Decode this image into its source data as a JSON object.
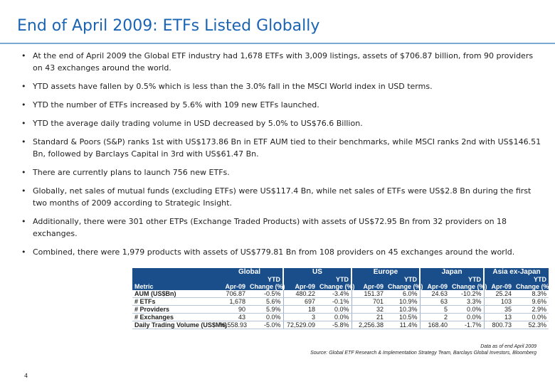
{
  "title": "End of April 2009: ETFs Listed Globally",
  "bullets": [
    "At the end of April 2009 the Global ETF industry had 1,678 ETFs with 3,009 listings, assets of $706.87 billion, from 90 providers on 43 exchanges around the world.",
    "YTD assets have fallen by 0.5% which is less than the 3.0% fall in the MSCI World index in USD terms.",
    "YTD the number of ETFs increased by 5.6% with 109 new ETFs launched.",
    "YTD the average daily trading volume in USD decreased by 5.0% to US$76.6 Billion.",
    "Standard & Poors (S&P) ranks 1st with US$173.86 Bn in ETF AUM tied to their benchmarks, while MSCI ranks 2nd with US$146.51 Bn, followed by Barclays Capital in 3rd with US$61.47 Bn.",
    "There are currently plans to launch 756 new ETFs.",
    "Globally, net sales of mutual funds (excluding ETFs) were US$117.4 Bn, while net sales of ETFs were US$2.8 Bn during the first two months of 2009 according to Strategic Insight.",
    "Additionally, there were 301 other ETPs (Exchange Traded Products) with assets of US$72.95 Bn from 32 providers on 18 exchanges.",
    "Combined, there were 1,979 products with assets of US$779.81 Bn from 108 providers on 45 exchanges around the world."
  ],
  "table": {
    "groups": [
      "Global",
      "US",
      "Europe",
      "Japan",
      "Asia ex-Japan"
    ],
    "ytd_label": "YTD",
    "metric_label": "Metric",
    "col_labels": [
      "Apr-09",
      "Change (%)"
    ],
    "rows": [
      {
        "metric": "AUM (US$Bn)",
        "values": [
          "706.87",
          "-0.5%",
          "480.22",
          "-3.4%",
          "151.37",
          "6.0%",
          "24.63",
          "-10.2%",
          "25.24",
          "8.3%"
        ]
      },
      {
        "metric": "# ETFs",
        "values": [
          "1,678",
          "5.6%",
          "697",
          "-0.1%",
          "701",
          "10.9%",
          "63",
          "3.3%",
          "103",
          "9.6%"
        ]
      },
      {
        "metric": "# Providers",
        "values": [
          "90",
          "5.9%",
          "18",
          "0.0%",
          "32",
          "10.3%",
          "5",
          "0.0%",
          "35",
          "2.9%"
        ]
      },
      {
        "metric": "# Exchanges",
        "values": [
          "43",
          "0.0%",
          "3",
          "0.0%",
          "21",
          "10.5%",
          "2",
          "0.0%",
          "13",
          "0.0%"
        ]
      },
      {
        "metric": "Daily Trading Volume (US$Mn)",
        "values": [
          "76,558.93",
          "-5.0%",
          "72,529.09",
          "-5.8%",
          "2,256.38",
          "11.4%",
          "168.40",
          "-1.7%",
          "800.73",
          "52.3%"
        ]
      }
    ]
  },
  "footnote_line1": "Data as of end April 2009",
  "footnote_line2": "Source: Global ETF Research & Implementation Strategy Team, Barclays Global Investors, Bloomberg",
  "page_number": "4"
}
